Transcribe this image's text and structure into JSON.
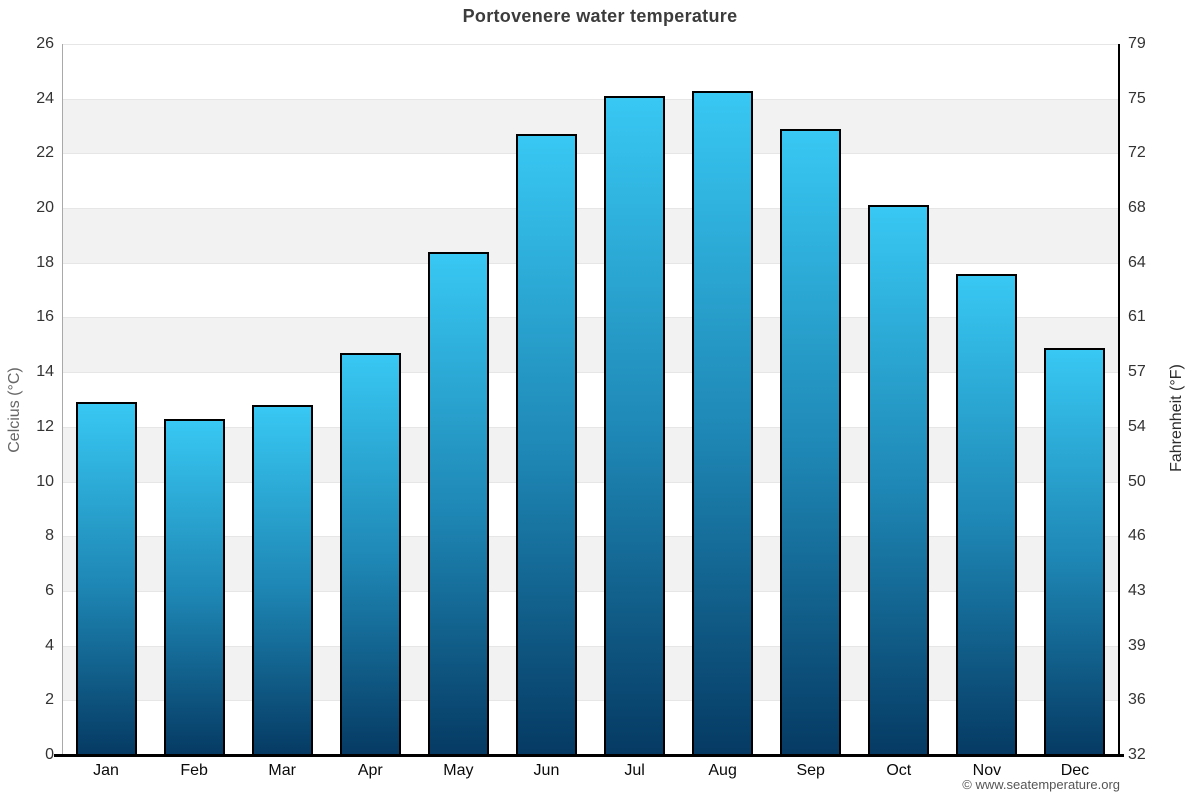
{
  "chart_data": {
    "type": "bar",
    "title": "Portovenere water temperature",
    "categories": [
      "Jan",
      "Feb",
      "Mar",
      "Apr",
      "May",
      "Jun",
      "Jul",
      "Aug",
      "Sep",
      "Oct",
      "Nov",
      "Dec"
    ],
    "values": [
      12.9,
      12.3,
      12.8,
      14.7,
      18.4,
      22.7,
      24.1,
      24.3,
      22.9,
      20.1,
      17.6,
      14.9
    ],
    "ylabel_left": "Celcius (°C)",
    "ylabel_right": "Fahrenheit (°F)",
    "xlabel": "",
    "ylim": [
      0,
      26
    ],
    "yticks_celsius": [
      0,
      2,
      4,
      6,
      8,
      10,
      12,
      14,
      16,
      18,
      20,
      22,
      24,
      26
    ],
    "yticks_fahrenheit": [
      "32",
      "36",
      "39",
      "43",
      "46",
      "50",
      "54",
      "57",
      "61",
      "64",
      "68",
      "72",
      "75",
      "79"
    ],
    "legend": "none",
    "grid": "alternating horizontal bands every 2°C",
    "colors": {
      "bar_gradient_top": "#38c8f3",
      "bar_gradient_bottom": "#053a63",
      "bar_border": "#000000",
      "band_gray": "#f2f2f2",
      "gridline": "#e6e6e6",
      "title_text": "#3c3c3c",
      "tick_text": "#333333"
    }
  },
  "footer": {
    "copyright": "© www.seatemperature.org"
  }
}
